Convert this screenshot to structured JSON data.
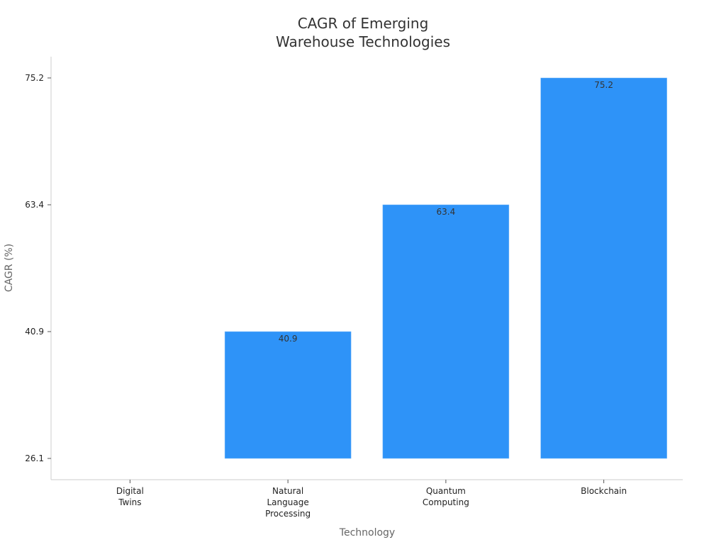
{
  "chart_data": {
    "type": "bar",
    "title": [
      "CAGR of Emerging",
      "Warehouse Technologies"
    ],
    "xlabel": "Technology",
    "ylabel": "CAGR (%)",
    "categories": [
      [
        "Digital",
        "Twins"
      ],
      [
        "Natural",
        "Language",
        "Processing"
      ],
      [
        "Quantum",
        "Computing"
      ],
      [
        "Blockchain"
      ]
    ],
    "values": [
      26.1,
      40.9,
      63.4,
      75.2
    ],
    "data_labels": [
      "",
      "40.9",
      "63.4",
      "75.2"
    ],
    "yticks": [
      "26.1",
      "40.9",
      "63.4",
      "75.2"
    ],
    "ylim": [
      26.1,
      75.2
    ],
    "bar_color": "#2e93f8",
    "grid": false
  }
}
